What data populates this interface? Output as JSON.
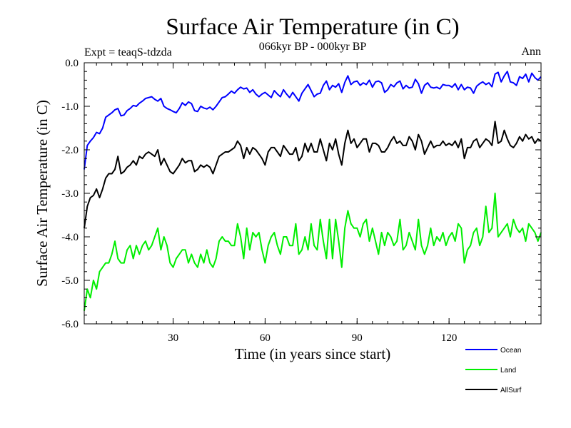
{
  "chart_data": {
    "type": "line",
    "title": "Surface Air Temperature (in C)",
    "subtitle": "066kyr BP - 000kyr BP",
    "experiment_label": "Expt = teaqS-tdzda",
    "period_label": "Ann",
    "xlabel": "Time (in years since start)",
    "ylabel": "Surface Air Temperature (in C)",
    "xlim": [
      1,
      150
    ],
    "ylim": [
      -6.0,
      0.0
    ],
    "xticks": [
      30,
      60,
      90,
      120
    ],
    "xtick_labels": [
      "30",
      "60",
      "90",
      "120"
    ],
    "yticks": [
      0.0,
      -1.0,
      -2.0,
      -3.0,
      -4.0,
      -5.0,
      -6.0
    ],
    "ytick_labels": [
      "0.0",
      "-1.0",
      "-2.0",
      "-3.0",
      "-4.0",
      "-5.0",
      "-6.0"
    ],
    "grid": false,
    "legend_position": "bottom-right",
    "x": [
      1,
      2,
      3,
      4,
      5,
      6,
      7,
      8,
      9,
      10,
      11,
      12,
      13,
      14,
      15,
      16,
      17,
      18,
      19,
      20,
      21,
      22,
      23,
      24,
      25,
      26,
      27,
      28,
      29,
      30,
      31,
      32,
      33,
      34,
      35,
      36,
      37,
      38,
      39,
      40,
      41,
      42,
      43,
      44,
      45,
      46,
      47,
      48,
      49,
      50,
      51,
      52,
      53,
      54,
      55,
      56,
      57,
      58,
      59,
      60,
      61,
      62,
      63,
      64,
      65,
      66,
      67,
      68,
      69,
      70,
      71,
      72,
      73,
      74,
      75,
      76,
      77,
      78,
      79,
      80,
      81,
      82,
      83,
      84,
      85,
      86,
      87,
      88,
      89,
      90,
      91,
      92,
      93,
      94,
      95,
      96,
      97,
      98,
      99,
      100,
      101,
      102,
      103,
      104,
      105,
      106,
      107,
      108,
      109,
      110,
      111,
      112,
      113,
      114,
      115,
      116,
      117,
      118,
      119,
      120,
      121,
      122,
      123,
      124,
      125,
      126,
      127,
      128,
      129,
      130,
      131,
      132,
      133,
      134,
      135,
      136,
      137,
      138,
      139,
      140,
      141,
      142,
      143,
      144,
      145,
      146,
      147,
      148,
      149,
      150
    ],
    "series": [
      {
        "name": "Ocean",
        "color": "#0000ff",
        "values": [
          -2.45,
          -1.9,
          -1.8,
          -1.72,
          -1.6,
          -1.63,
          -1.5,
          -1.25,
          -1.2,
          -1.15,
          -1.08,
          -1.05,
          -1.22,
          -1.2,
          -1.1,
          -1.05,
          -0.98,
          -1.0,
          -0.93,
          -0.88,
          -0.82,
          -0.8,
          -0.78,
          -0.84,
          -0.88,
          -0.82,
          -1.0,
          -1.05,
          -1.08,
          -1.12,
          -1.15,
          -1.05,
          -0.92,
          -0.98,
          -0.9,
          -0.94,
          -1.1,
          -1.12,
          -1.0,
          -1.04,
          -1.06,
          -1.02,
          -1.08,
          -1.0,
          -0.9,
          -0.8,
          -0.78,
          -0.72,
          -0.65,
          -0.7,
          -0.62,
          -0.56,
          -0.6,
          -0.58,
          -0.68,
          -0.62,
          -0.72,
          -0.78,
          -0.72,
          -0.68,
          -0.74,
          -0.8,
          -0.64,
          -0.72,
          -0.78,
          -0.62,
          -0.72,
          -0.8,
          -0.68,
          -0.78,
          -0.88,
          -0.7,
          -0.6,
          -0.5,
          -0.64,
          -0.78,
          -0.72,
          -0.7,
          -0.52,
          -0.42,
          -0.62,
          -0.52,
          -0.56,
          -0.48,
          -0.68,
          -0.45,
          -0.3,
          -0.5,
          -0.44,
          -0.42,
          -0.52,
          -0.46,
          -0.5,
          -0.4,
          -0.56,
          -0.44,
          -0.42,
          -0.46,
          -0.68,
          -0.62,
          -0.5,
          -0.55,
          -0.46,
          -0.42,
          -0.6,
          -0.52,
          -0.58,
          -0.56,
          -0.38,
          -0.48,
          -0.7,
          -0.52,
          -0.46,
          -0.56,
          -0.58,
          -0.56,
          -0.6,
          -0.5,
          -0.52,
          -0.52,
          -0.56,
          -0.48,
          -0.62,
          -0.5,
          -0.62,
          -0.56,
          -0.58,
          -0.7,
          -0.54,
          -0.48,
          -0.44,
          -0.5,
          -0.46,
          -0.55,
          -0.26,
          -0.22,
          -0.44,
          -0.3,
          -0.2,
          -0.44,
          -0.46,
          -0.52,
          -0.32,
          -0.36,
          -0.26,
          -0.44,
          -0.24,
          -0.34,
          -0.4,
          -0.32
        ]
      },
      {
        "name": "Land",
        "color": "#00ee00",
        "values": [
          -5.7,
          -5.2,
          -5.4,
          -5.0,
          -5.2,
          -4.8,
          -4.7,
          -4.6,
          -4.6,
          -4.4,
          -4.1,
          -4.5,
          -4.6,
          -4.6,
          -4.3,
          -4.2,
          -4.5,
          -4.2,
          -4.4,
          -4.2,
          -4.1,
          -4.3,
          -4.2,
          -4.0,
          -3.8,
          -4.3,
          -4.0,
          -4.2,
          -4.6,
          -4.7,
          -4.5,
          -4.4,
          -4.3,
          -4.3,
          -4.6,
          -4.4,
          -4.6,
          -4.7,
          -4.4,
          -4.6,
          -4.3,
          -4.6,
          -4.7,
          -4.5,
          -4.1,
          -4.0,
          -4.1,
          -4.1,
          -4.2,
          -4.2,
          -3.7,
          -4.0,
          -4.5,
          -3.8,
          -4.3,
          -3.9,
          -4.0,
          -3.9,
          -4.3,
          -4.6,
          -4.2,
          -4.0,
          -3.9,
          -4.2,
          -4.4,
          -4.0,
          -4.0,
          -4.2,
          -4.2,
          -3.7,
          -4.4,
          -4.3,
          -4.0,
          -4.3,
          -3.7,
          -4.2,
          -4.3,
          -3.6,
          -4.1,
          -4.5,
          -3.6,
          -4.5,
          -3.6,
          -4.1,
          -4.7,
          -3.8,
          -3.4,
          -3.7,
          -3.8,
          -3.8,
          -4.0,
          -3.7,
          -3.6,
          -4.1,
          -3.8,
          -4.1,
          -4.4,
          -3.9,
          -4.2,
          -3.9,
          -4.0,
          -4.2,
          -4.1,
          -3.6,
          -4.3,
          -4.2,
          -3.9,
          -4.1,
          -4.3,
          -3.6,
          -4.2,
          -4.4,
          -4.2,
          -3.8,
          -4.2,
          -4.0,
          -4.1,
          -3.9,
          -4.2,
          -4.0,
          -3.9,
          -4.1,
          -3.7,
          -3.8,
          -4.6,
          -4.3,
          -4.2,
          -3.9,
          -3.8,
          -4.2,
          -4.0,
          -3.3,
          -3.9,
          -3.8,
          -3.0,
          -4.0,
          -3.9,
          -3.8,
          -3.7,
          -4.0,
          -3.6,
          -3.8,
          -3.9,
          -3.8,
          -4.1,
          -3.7,
          -3.8,
          -3.9,
          -4.1,
          -3.9
        ]
      },
      {
        "name": "AllSurf",
        "color": "#000000",
        "values": [
          -3.8,
          -3.3,
          -3.1,
          -3.05,
          -2.9,
          -3.1,
          -2.9,
          -2.65,
          -2.55,
          -2.55,
          -2.45,
          -2.15,
          -2.55,
          -2.5,
          -2.4,
          -2.35,
          -2.25,
          -2.35,
          -2.15,
          -2.2,
          -2.1,
          -2.05,
          -2.1,
          -2.15,
          -2.0,
          -2.35,
          -2.2,
          -2.35,
          -2.5,
          -2.55,
          -2.45,
          -2.35,
          -2.2,
          -2.3,
          -2.25,
          -2.25,
          -2.5,
          -2.45,
          -2.35,
          -2.4,
          -2.35,
          -2.4,
          -2.55,
          -2.35,
          -2.15,
          -2.1,
          -2.05,
          -2.05,
          -2.0,
          -1.95,
          -1.8,
          -1.9,
          -2.2,
          -1.95,
          -2.1,
          -1.95,
          -2.0,
          -2.1,
          -2.2,
          -2.35,
          -2.05,
          -1.95,
          -1.95,
          -2.05,
          -2.15,
          -1.9,
          -2.0,
          -2.1,
          -2.1,
          -1.95,
          -2.25,
          -2.15,
          -1.85,
          -2.05,
          -1.85,
          -2.05,
          -2.05,
          -1.75,
          -2.0,
          -2.25,
          -1.85,
          -2.0,
          -1.75,
          -2.1,
          -2.35,
          -1.85,
          -1.55,
          -1.85,
          -1.75,
          -1.95,
          -1.85,
          -1.75,
          -1.75,
          -2.05,
          -1.85,
          -1.85,
          -1.9,
          -2.05,
          -2.05,
          -1.95,
          -1.8,
          -1.7,
          -1.85,
          -1.8,
          -1.9,
          -1.9,
          -1.7,
          -1.8,
          -2.0,
          -1.65,
          -1.8,
          -2.1,
          -1.95,
          -1.8,
          -1.95,
          -1.9,
          -1.9,
          -1.8,
          -1.9,
          -1.85,
          -1.9,
          -1.8,
          -1.95,
          -1.75,
          -2.2,
          -1.95,
          -1.95,
          -1.8,
          -1.75,
          -1.95,
          -1.85,
          -1.75,
          -1.8,
          -1.9,
          -1.35,
          -1.85,
          -1.8,
          -1.55,
          -1.75,
          -1.9,
          -1.95,
          -1.85,
          -1.7,
          -1.8,
          -1.65,
          -1.75,
          -1.7,
          -1.85,
          -1.75,
          -1.8
        ]
      }
    ]
  }
}
